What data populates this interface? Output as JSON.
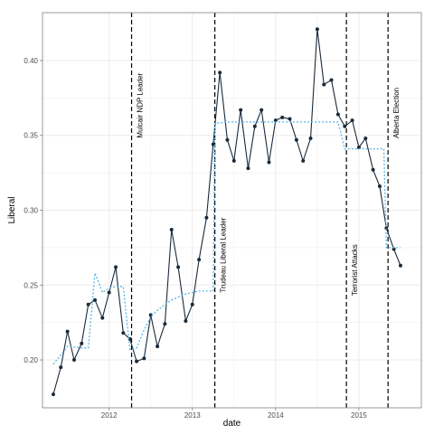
{
  "chart_data": {
    "type": "line",
    "xlabel": "date",
    "ylabel": "Liberal",
    "xlim": [
      2011.2,
      2015.75
    ],
    "ylim": [
      0.168,
      0.432
    ],
    "x_ticks": [
      {
        "value": 2012,
        "label": "2012"
      },
      {
        "value": 2013,
        "label": "2013"
      },
      {
        "value": 2014,
        "label": "2014"
      },
      {
        "value": 2015,
        "label": "2015"
      }
    ],
    "y_ticks": [
      {
        "value": 0.2,
        "label": "0.20"
      },
      {
        "value": 0.25,
        "label": "0.25"
      },
      {
        "value": 0.3,
        "label": "0.30"
      },
      {
        "value": 0.35,
        "label": "0.35"
      },
      {
        "value": 0.4,
        "label": "0.40"
      }
    ],
    "grid": true,
    "colors": {
      "observed": "#1a2a3a",
      "model": "#56b4e9",
      "event_line": "#000000",
      "grid": "#ebebeb",
      "panel_border": "#7f7f7f"
    },
    "series": [
      {
        "style": "solid-with-points",
        "x": [
          2011.33,
          2011.42,
          2011.5,
          2011.58,
          2011.67,
          2011.75,
          2011.83,
          2011.92,
          2012.0,
          2012.08,
          2012.17,
          2012.25,
          2012.33,
          2012.42,
          2012.5,
          2012.58,
          2012.67,
          2012.75,
          2012.83,
          2012.92,
          2013.0,
          2013.08,
          2013.17,
          2013.25,
          2013.33,
          2013.42,
          2013.5,
          2013.58,
          2013.67,
          2013.75,
          2013.83,
          2013.92,
          2014.0,
          2014.08,
          2014.17,
          2014.25,
          2014.33,
          2014.42,
          2014.5,
          2014.58,
          2014.67,
          2014.75,
          2014.83,
          2014.92,
          2015.0,
          2015.08,
          2015.17,
          2015.25,
          2015.33,
          2015.42,
          2015.5
        ],
        "y": [
          0.177,
          0.195,
          0.219,
          0.2,
          0.211,
          0.237,
          0.24,
          0.228,
          0.245,
          0.262,
          0.218,
          0.214,
          0.199,
          0.201,
          0.23,
          0.209,
          0.224,
          0.287,
          0.262,
          0.226,
          0.237,
          0.267,
          0.295,
          0.344,
          0.392,
          0.347,
          0.333,
          0.367,
          0.328,
          0.356,
          0.367,
          0.332,
          0.36,
          0.362,
          0.361,
          0.347,
          0.333,
          0.348,
          0.421,
          0.384,
          0.387,
          0.364,
          0.356,
          0.36,
          0.342,
          0.348,
          0.327,
          0.316,
          0.288,
          0.274,
          0.263
        ]
      },
      {
        "style": "dotted",
        "x": [
          2011.33,
          2011.5,
          2011.67,
          2011.75,
          2011.83,
          2011.92,
          2012.0,
          2012.08,
          2012.17,
          2012.25,
          2012.33,
          2012.42,
          2012.5,
          2012.58,
          2012.67,
          2012.75,
          2012.83,
          2012.92,
          2013.0,
          2013.08,
          2013.17,
          2013.25,
          2013.27,
          2013.42,
          2013.6,
          2013.8,
          2014.0,
          2014.2,
          2014.4,
          2014.6,
          2014.75,
          2014.83,
          2014.92,
          2015.0,
          2015.17,
          2015.3,
          2015.33,
          2015.42,
          2015.5
        ],
        "y": [
          0.197,
          0.209,
          0.208,
          0.208,
          0.258,
          0.245,
          0.248,
          0.249,
          0.249,
          0.207,
          0.208,
          0.22,
          0.229,
          0.233,
          0.237,
          0.24,
          0.242,
          0.244,
          0.245,
          0.246,
          0.246,
          0.246,
          0.358,
          0.359,
          0.359,
          0.359,
          0.359,
          0.359,
          0.359,
          0.359,
          0.359,
          0.341,
          0.341,
          0.341,
          0.341,
          0.341,
          0.275,
          0.275,
          0.275
        ]
      }
    ],
    "events": [
      {
        "x": 2012.27,
        "label": "Mulcair NDP Leader",
        "label_at_y": 0.37
      },
      {
        "x": 2013.27,
        "label": "Trudeau Liberal Leader",
        "label_at_y": 0.27
      },
      {
        "x": 2014.85,
        "label": "Terrorist Attacks",
        "label_at_y": 0.26
      },
      {
        "x": 2015.35,
        "label": "Alberta Election",
        "label_at_y": 0.365
      }
    ]
  }
}
